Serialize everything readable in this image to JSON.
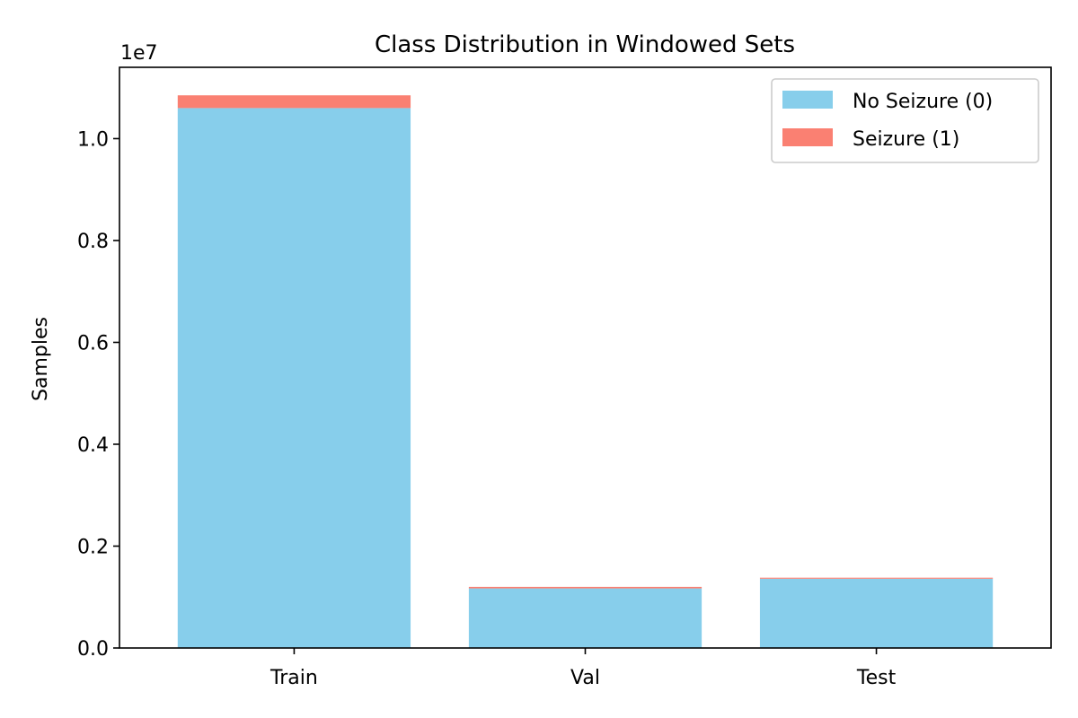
{
  "chart_data": {
    "type": "bar",
    "stacked": true,
    "title": "Class Distribution in Windowed Sets",
    "xlabel": "",
    "ylabel": "Samples",
    "y_offset_label": "1e7",
    "y_scale_factor": 10000000,
    "ylim": [
      0,
      11400000
    ],
    "yticks": [
      0,
      2000000,
      4000000,
      6000000,
      8000000,
      10000000
    ],
    "ytick_labels": [
      "0.0",
      "0.2",
      "0.4",
      "0.6",
      "0.8",
      "1.0"
    ],
    "categories": [
      "Train",
      "Val",
      "Test"
    ],
    "series": [
      {
        "name": "No Seizure (0)",
        "color": "#87CEEB",
        "values": [
          10600000,
          1170000,
          1360000
        ]
      },
      {
        "name": "Seizure (1)",
        "color": "#FA8072",
        "values": [
          250000,
          30000,
          20000
        ]
      }
    ],
    "grid": false,
    "legend_position": "top-right"
  }
}
